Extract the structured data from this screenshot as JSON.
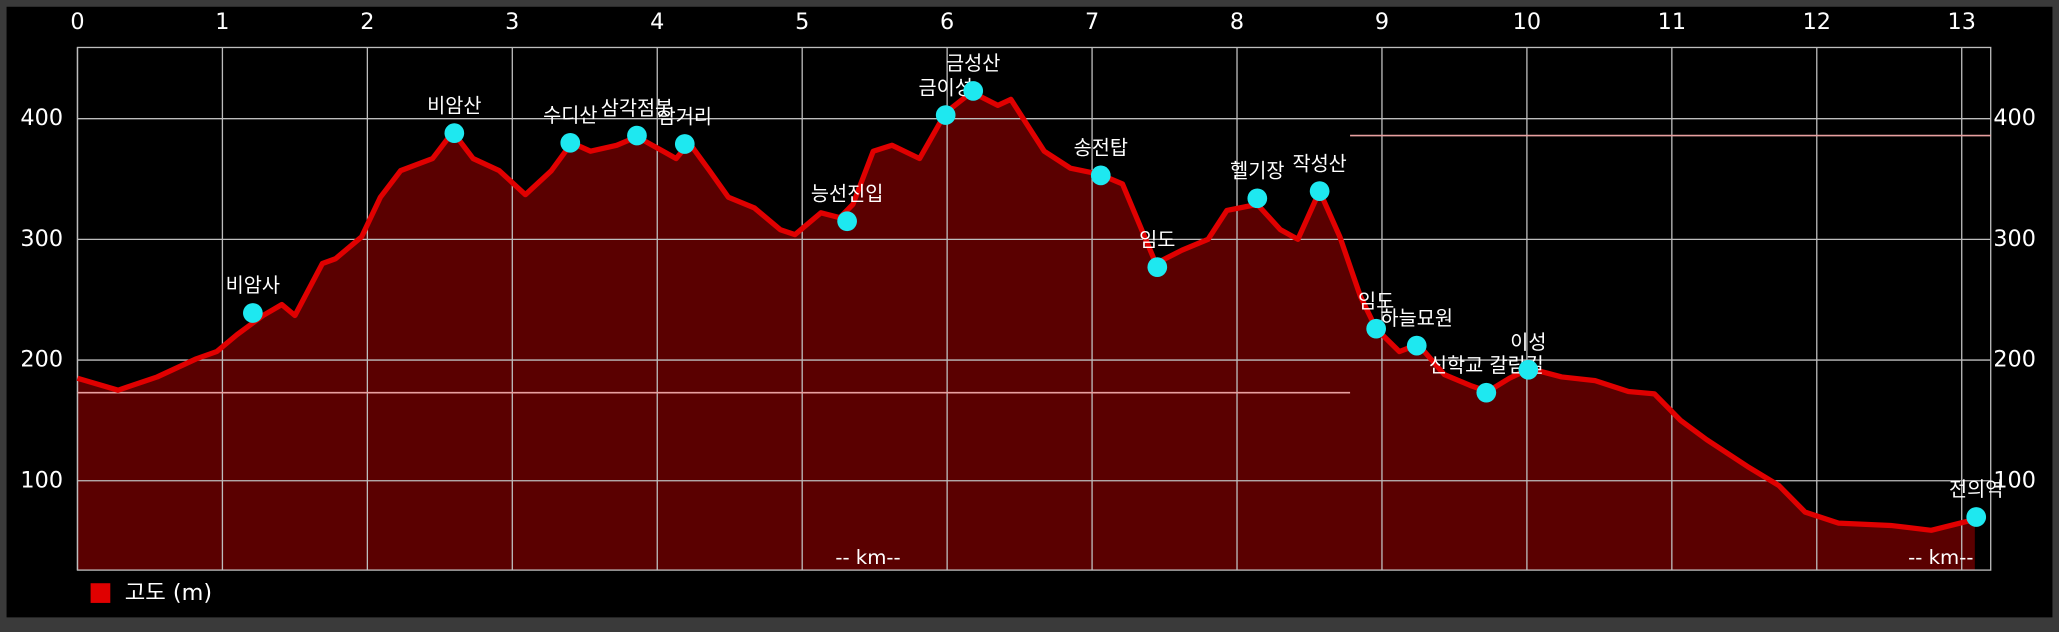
{
  "chart_data": {
    "type": "area",
    "xlabel": "-- km--",
    "xlim": [
      0,
      13.2
    ],
    "ylim": [
      26,
      459
    ],
    "xticks": [
      0,
      1,
      2,
      3,
      4,
      5,
      6,
      7,
      8,
      9,
      10,
      11,
      12,
      13
    ],
    "yticks": [
      100,
      200,
      300,
      400
    ],
    "grid": true,
    "legend": "bottom-left",
    "series": [
      {
        "name": "고도 (m)",
        "color": "#e00000",
        "fill": "#5a0000",
        "x": [
          0,
          0.28,
          0.55,
          0.82,
          0.96,
          1.1,
          1.28,
          1.41,
          1.5,
          1.69,
          1.78,
          1.96,
          2.09,
          2.23,
          2.45,
          2.59,
          2.73,
          2.91,
          3.09,
          3.27,
          3.41,
          3.54,
          3.72,
          3.86,
          4.04,
          4.13,
          4.22,
          4.36,
          4.49,
          4.67,
          4.85,
          4.95,
          5.13,
          5.26,
          5.35,
          5.49,
          5.62,
          5.81,
          5.99,
          6.17,
          6.35,
          6.44,
          6.67,
          6.85,
          7.05,
          7.21,
          7.44,
          7.62,
          7.8,
          7.93,
          8.14,
          8.3,
          8.42,
          8.57,
          8.71,
          8.85,
          8.96,
          9.12,
          9.25,
          9.43,
          9.61,
          9.73,
          9.88,
          10.02,
          10.24,
          10.47,
          10.7,
          10.88,
          11.06,
          11.24,
          11.52,
          11.74,
          11.92,
          12.15,
          12.51,
          12.79,
          13.09
        ],
        "values": [
          185,
          175,
          186,
          201,
          207,
          221,
          237,
          246,
          237,
          280,
          284,
          302,
          335,
          357,
          367,
          389,
          367,
          357,
          337,
          357,
          380,
          373,
          378,
          385,
          373,
          367,
          380,
          357,
          335,
          326,
          308,
          304,
          322,
          318,
          329,
          373,
          378,
          367,
          405,
          422,
          411,
          416,
          373,
          359,
          354,
          346,
          280,
          291,
          300,
          324,
          329,
          308,
          300,
          340,
          302,
          253,
          226,
          207,
          213,
          188,
          179,
          174,
          185,
          193,
          186,
          183,
          174,
          172,
          150,
          134,
          112,
          96,
          74,
          65,
          63,
          59,
          68
        ]
      }
    ],
    "reference_lines": [
      {
        "y": 173,
        "x": [
          0,
          8.78
        ]
      },
      {
        "y": 386,
        "x": [
          8.78,
          13.2
        ]
      }
    ],
    "waypoints": [
      {
        "name": "비암사",
        "x": 1.21,
        "y": 239
      },
      {
        "name": "비암산",
        "x": 2.6,
        "y": 388
      },
      {
        "name": "수디산",
        "x": 3.4,
        "y": 380
      },
      {
        "name": "삼각점봉",
        "x": 3.86,
        "y": 386
      },
      {
        "name": "삼거리",
        "x": 4.19,
        "y": 379
      },
      {
        "name": "능선진입",
        "x": 5.31,
        "y": 315
      },
      {
        "name": "금이성",
        "x": 5.99,
        "y": 403
      },
      {
        "name": "금성산",
        "x": 6.18,
        "y": 423
      },
      {
        "name": "송전탑",
        "x": 7.06,
        "y": 353
      },
      {
        "name": "임도",
        "x": 7.45,
        "y": 277
      },
      {
        "name": "헬기장",
        "x": 8.14,
        "y": 334
      },
      {
        "name": "작성산",
        "x": 8.57,
        "y": 340
      },
      {
        "name": "임도",
        "x": 8.96,
        "y": 226
      },
      {
        "name": "하늘묘원",
        "x": 9.24,
        "y": 212
      },
      {
        "name": "신학교 갈림길",
        "x": 9.72,
        "y": 173
      },
      {
        "name": "이성",
        "x": 10.01,
        "y": 192
      },
      {
        "name": "전의역",
        "x": 13.1,
        "y": 70
      }
    ]
  }
}
